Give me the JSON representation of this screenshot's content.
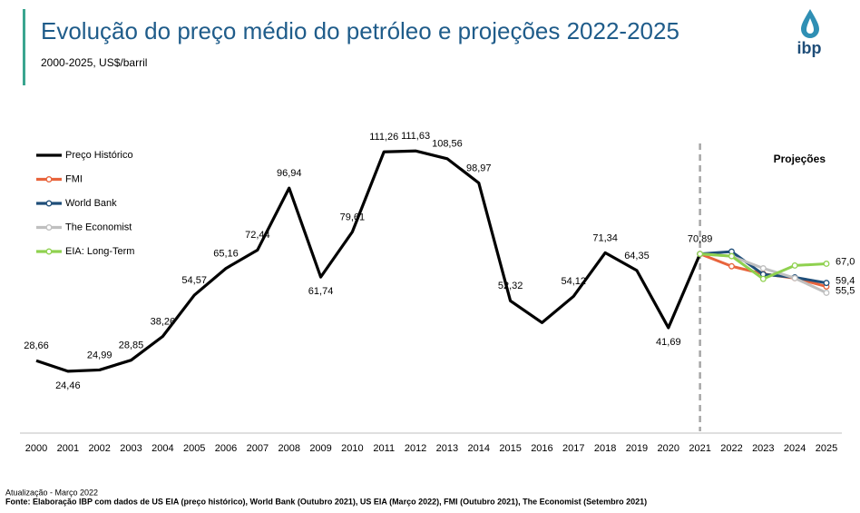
{
  "chart_data": {
    "type": "line",
    "title": "Evolução do preço médio do petróleo e projeções 2022-2025",
    "subtitle": "2000-2025, US$/barril",
    "logo_text": "ibp",
    "annotation": "Projeções",
    "footnotes": [
      "Atualização - Março 2022",
      "Fonte: Elaboração IBP com dados de US EIA (preço histórico), World Bank (Outubro 2021), US EIA (Março 2022), FMI (Outubro 2021), The Economist (Setembro 2021)"
    ],
    "categories": [
      "2000",
      "2001",
      "2002",
      "2003",
      "2004",
      "2005",
      "2006",
      "2007",
      "2008",
      "2009",
      "2010",
      "2011",
      "2012",
      "2013",
      "2014",
      "2015",
      "2016",
      "2017",
      "2018",
      "2019",
      "2020",
      "2021",
      "2022",
      "2023",
      "2024",
      "2025"
    ],
    "ylim": [
      0,
      125
    ],
    "series": [
      {
        "name": "Preço Histórico",
        "color": "#000000",
        "values": [
          28.66,
          24.46,
          24.99,
          28.85,
          38.26,
          54.57,
          65.16,
          72.44,
          96.94,
          61.74,
          79.61,
          111.26,
          111.63,
          108.56,
          98.97,
          52.32,
          43.7,
          54.12,
          71.34,
          64.35,
          41.69,
          70.89,
          null,
          null,
          null,
          null
        ],
        "value_labels": [
          "28,66",
          "24,46",
          "24,99",
          "28,85",
          "38,26",
          "54,57",
          "65,16",
          "72,44",
          "96,94",
          "61,74",
          "79,61",
          "111,26",
          "111,63",
          "108,56",
          "98,97",
          "52,32",
          null,
          "54,12",
          "71,34",
          "64,35",
          "41,69",
          "70,89",
          null,
          null,
          null,
          null
        ]
      },
      {
        "name": "FMI",
        "color": "#e8643c",
        "values": [
          null,
          null,
          null,
          null,
          null,
          null,
          null,
          null,
          null,
          null,
          null,
          null,
          null,
          null,
          null,
          null,
          null,
          null,
          null,
          null,
          null,
          70.89,
          66.0,
          63.0,
          61.3,
          58.0
        ],
        "value_labels": [
          null,
          null,
          null,
          null,
          null,
          null,
          null,
          null,
          null,
          null,
          null,
          null,
          null,
          null,
          null,
          null,
          null,
          null,
          null,
          null,
          null,
          null,
          null,
          null,
          null,
          null
        ]
      },
      {
        "name": "World Bank",
        "color": "#1f4e79",
        "values": [
          null,
          null,
          null,
          null,
          null,
          null,
          null,
          null,
          null,
          null,
          null,
          null,
          null,
          null,
          null,
          null,
          null,
          null,
          null,
          null,
          null,
          70.89,
          71.8,
          62.8,
          61.6,
          59.4
        ],
        "value_labels": [
          null,
          null,
          null,
          null,
          null,
          null,
          null,
          null,
          null,
          null,
          null,
          null,
          null,
          null,
          null,
          null,
          null,
          null,
          null,
          null,
          null,
          null,
          null,
          null,
          null,
          "59,4"
        ]
      },
      {
        "name": "The Economist",
        "color": "#bfbfbf",
        "values": [
          null,
          null,
          null,
          null,
          null,
          null,
          null,
          null,
          null,
          null,
          null,
          null,
          null,
          null,
          null,
          null,
          null,
          null,
          null,
          null,
          null,
          70.89,
          70.0,
          65.2,
          61.3,
          55.5
        ],
        "value_labels": [
          null,
          null,
          null,
          null,
          null,
          null,
          null,
          null,
          null,
          null,
          null,
          null,
          null,
          null,
          null,
          null,
          null,
          null,
          null,
          null,
          null,
          null,
          null,
          null,
          null,
          "55,5"
        ]
      },
      {
        "name": "EIA: Long-Term",
        "color": "#8fd14f",
        "values": [
          null,
          null,
          null,
          null,
          null,
          null,
          null,
          null,
          null,
          null,
          null,
          null,
          null,
          null,
          null,
          null,
          null,
          null,
          null,
          null,
          null,
          70.89,
          70.0,
          61.0,
          66.3,
          67.0
        ],
        "value_labels": [
          null,
          null,
          null,
          null,
          null,
          null,
          null,
          null,
          null,
          null,
          null,
          null,
          null,
          null,
          null,
          null,
          null,
          null,
          null,
          null,
          null,
          null,
          null,
          null,
          null,
          "67,0"
        ]
      }
    ],
    "legend": "upper left"
  }
}
